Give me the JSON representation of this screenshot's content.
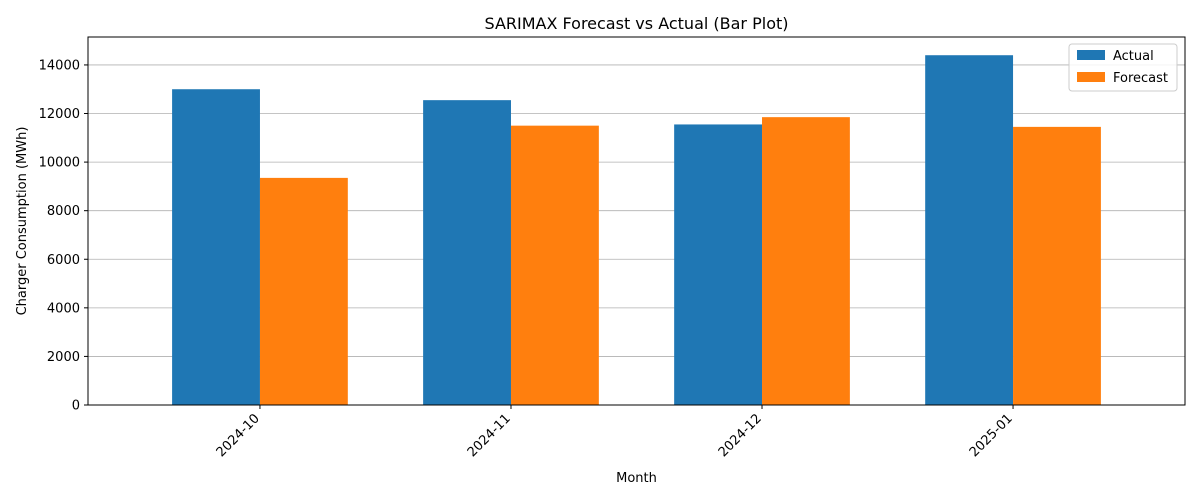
{
  "chart_data": {
    "type": "bar",
    "title": "SARIMAX Forecast vs Actual (Bar Plot)",
    "xlabel": "Month",
    "ylabel": "Charger Consumption (MWh)",
    "categories": [
      "2024-10",
      "2024-11",
      "2024-12",
      "2025-01"
    ],
    "series": [
      {
        "name": "Actual",
        "color": "#1f77b4",
        "values": [
          13000,
          12550,
          11550,
          14400
        ]
      },
      {
        "name": "Forecast",
        "color": "#ff7f0e",
        "values": [
          9350,
          11500,
          11850,
          11450
        ]
      }
    ],
    "ylim": [
      0,
      15150
    ],
    "yticks": [
      0,
      2000,
      4000,
      6000,
      8000,
      10000,
      12000,
      14000
    ],
    "grid": "y-major",
    "legend_position": "top-right"
  }
}
